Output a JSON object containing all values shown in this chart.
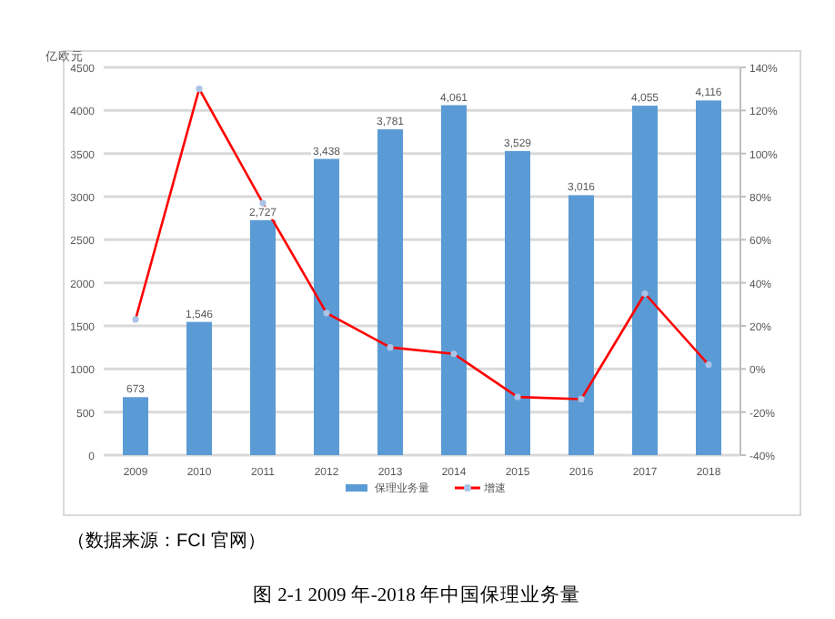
{
  "chart_data": {
    "type": "bar",
    "title": "图 2-1 2009 年-2018 年中国保理业务量",
    "ylabel": "亿欧元",
    "annotations": [
      "（数据来源：FCI 官网）"
    ],
    "categories": [
      "2009",
      "2010",
      "2011",
      "2012",
      "2013",
      "2014",
      "2015",
      "2016",
      "2017",
      "2018"
    ],
    "series": [
      {
        "name": "保理业务量",
        "color": "#5b9bd5",
        "values": [
          673,
          1546,
          2727,
          3438,
          3781,
          4061,
          3529,
          3016,
          4055,
          4116
        ],
        "value_labels": [
          "673",
          "1,546",
          "2,727",
          "3,438",
          "3,781",
          "4,061",
          "3,529",
          "3,016",
          "4,055",
          "4,116"
        ]
      },
      {
        "name": "增速",
        "type": "line",
        "axis": "y2",
        "color": "#ff0000",
        "marker": "circle",
        "values": [
          23,
          130,
          77,
          26,
          10,
          7,
          -13,
          -14,
          35,
          2
        ]
      }
    ],
    "ylim": [
      0,
      4500
    ],
    "yticks": [
      0,
      500,
      1000,
      1500,
      2000,
      2500,
      3000,
      3500,
      4000,
      4500
    ],
    "y2lim": [
      -40,
      140
    ],
    "y2ticks": [
      {
        "value": -40,
        "label": "-40%"
      },
      {
        "value": -20,
        "label": "-20%"
      },
      {
        "value": 0,
        "label": "0%"
      },
      {
        "value": 20,
        "label": "20%"
      },
      {
        "value": 40,
        "label": "40%"
      },
      {
        "value": 60,
        "label": "60%"
      },
      {
        "value": 80,
        "label": "80%"
      },
      {
        "value": 100,
        "label": "100%"
      },
      {
        "value": 120,
        "label": "120%"
      },
      {
        "value": 140,
        "label": "140%"
      }
    ],
    "grid": "y",
    "legend": "bottom"
  }
}
